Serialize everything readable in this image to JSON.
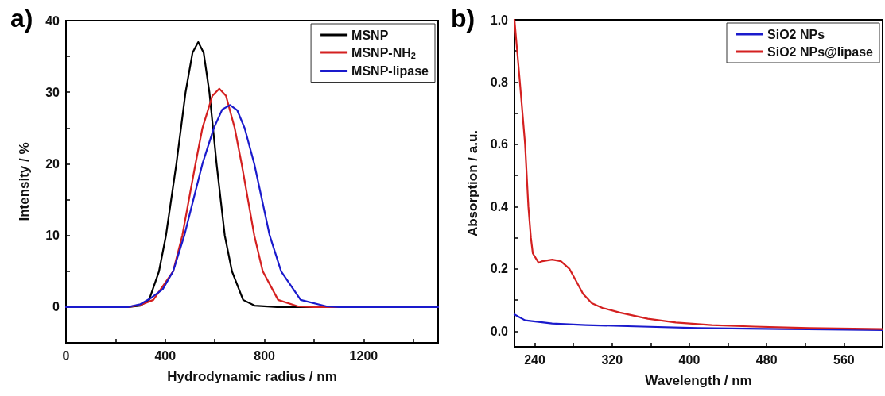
{
  "chart_data": [
    {
      "type": "line",
      "title": "a)",
      "xlabel": "Hydrodynamic radius / nm",
      "ylabel": "Intensity / %",
      "xlim": [
        0,
        1500
      ],
      "xticks": [
        0,
        {
          "value": 200,
          "label": null
        },
        400,
        {
          "value": 600,
          "label": null
        },
        800,
        {
          "value": 1000,
          "label": null
        },
        1200,
        {
          "value": 1400,
          "label": null
        }
      ],
      "ylim": [
        -5,
        40
      ],
      "yticks": [
        0,
        {
          "value": 5,
          "label": null
        },
        10,
        {
          "value": 15,
          "label": null
        },
        20,
        {
          "value": 25,
          "label": null
        },
        30,
        {
          "value": 35,
          "label": null
        },
        40
      ],
      "grid": false,
      "legend": "top right",
      "series": [
        {
          "name": "MSNP",
          "color": "#000000",
          "x": [
            0,
            250,
            300,
            335,
            375,
            403,
            445,
            482,
            510,
            533,
            555,
            578,
            607,
            640,
            669,
            714,
            760,
            850,
            1500
          ],
          "values": [
            0,
            0,
            0.2,
            1,
            5,
            10,
            20,
            30,
            35.5,
            37,
            35.5,
            30,
            20,
            10,
            5,
            1,
            0.2,
            0,
            0
          ]
        },
        {
          "name": "MSNP-NH$_{2}$",
          "color": "#d42020",
          "x": [
            0,
            250,
            300,
            352,
            432,
            469,
            522,
            550,
            590,
            618,
            645,
            680,
            708,
            759,
            793,
            855,
            935,
            1000,
            1500
          ],
          "values": [
            0,
            0,
            0.3,
            1,
            5,
            10,
            20,
            25,
            29.5,
            30.5,
            29.5,
            25,
            20,
            10,
            5,
            1,
            0.1,
            0,
            0
          ]
        },
        {
          "name": "MSNP-lipase",
          "color": "#1a1acc",
          "x": [
            0,
            250,
            300,
            340,
            390,
            432,
            477,
            550,
            596,
            630,
            661,
            690,
            720,
            759,
            821,
            867,
            946,
            1050,
            1100,
            1500
          ],
          "values": [
            0,
            0,
            0.4,
            1.2,
            2.5,
            5,
            10,
            20,
            25,
            27.6,
            28.2,
            27.5,
            25,
            20,
            10,
            5,
            1,
            0.1,
            0,
            0
          ]
        }
      ]
    },
    {
      "type": "line",
      "title": "b)",
      "xlabel": "Wavelength / nm",
      "ylabel": "Absorption / a.u.",
      "xlim": [
        219,
        600
      ],
      "xticks": [
        240,
        {
          "value": 280,
          "label": null
        },
        320,
        {
          "value": 360,
          "label": null
        },
        400,
        {
          "value": 440,
          "label": null
        },
        480,
        {
          "value": 520,
          "label": null
        },
        560
      ],
      "ylim": [
        -0.05,
        1.0
      ],
      "yticks": [
        {
          "value": 0,
          "label": "0.0"
        },
        {
          "value": 0.1,
          "label": null
        },
        0.2,
        {
          "value": 0.3,
          "label": null
        },
        0.4,
        {
          "value": 0.5,
          "label": null
        },
        0.6,
        {
          "value": 0.7,
          "label": null
        },
        0.8,
        {
          "value": 0.9,
          "label": null
        },
        {
          "value": 1.0,
          "label": "1.0"
        }
      ],
      "grid": false,
      "legend": "top right",
      "series": [
        {
          "name": "SiO2 NPs",
          "color": "#1a1acc",
          "x": [
            219,
            230,
            258,
            293,
            351,
            409,
            495,
            600
          ],
          "values": [
            0.054,
            0.035,
            0.025,
            0.02,
            0.015,
            0.01,
            0.007,
            0.004
          ]
        },
        {
          "name": "SiO2 NPs@lipase",
          "color": "#d42020",
          "x": [
            219,
            224.6,
            230,
            233.4,
            236,
            238,
            244,
            248,
            258,
            267,
            276,
            283,
            290,
            299,
            310,
            328,
            357,
            386,
            423,
            467,
            524,
            600
          ],
          "values": [
            1.0,
            0.8,
            0.6,
            0.4,
            0.3,
            0.25,
            0.22,
            0.225,
            0.23,
            0.225,
            0.2,
            0.16,
            0.12,
            0.09,
            0.075,
            0.06,
            0.04,
            0.028,
            0.02,
            0.015,
            0.01,
            0.007
          ]
        }
      ]
    }
  ]
}
